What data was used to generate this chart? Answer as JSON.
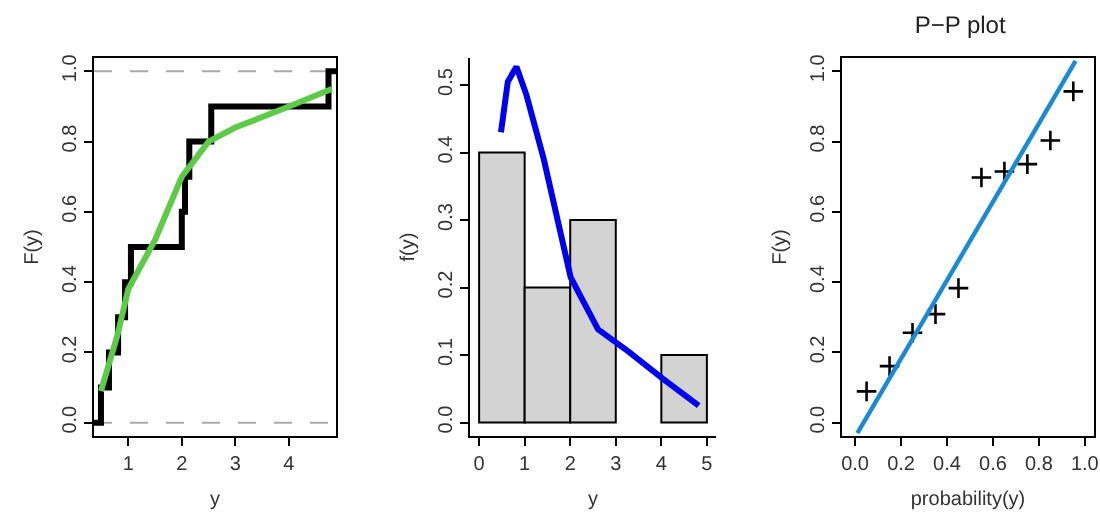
{
  "chart_data": [
    {
      "type": "step",
      "xlabel": "y",
      "ylabel": "F(y)",
      "xlim": [
        0.36,
        4.88
      ],
      "ylim": [
        -0.038,
        1.038
      ],
      "xticks": [
        1,
        2,
        3,
        4
      ],
      "yticks": [
        {
          "value": 0,
          "label": "0.0"
        },
        {
          "value": 0.2,
          "label": "0.2"
        },
        {
          "value": 0.4,
          "label": "0.4"
        },
        {
          "value": 0.6,
          "label": "0.6"
        },
        {
          "value": 0.8,
          "label": "0.8"
        },
        {
          "value": 1,
          "label": "1.0"
        }
      ],
      "grid": false,
      "ref_lines": [
        {
          "axis": "y",
          "value": 0,
          "color": "#aaaaaa",
          "line_style": "dashed"
        },
        {
          "axis": "y",
          "value": 1,
          "color": "#aaaaaa",
          "line_style": "dashed"
        }
      ],
      "series": [
        {
          "type": "step",
          "color": "#000000",
          "x": [
            0.36,
            0.49,
            0.64,
            0.81,
            0.94,
            1.05,
            2.0,
            2.06,
            2.14,
            2.55,
            4.74,
            4.88
          ],
          "values": [
            0,
            0.1,
            0.2,
            0.3,
            0.4,
            0.5,
            0.6,
            0.7,
            0.8,
            0.9,
            1.0,
            1.0
          ]
        },
        {
          "type": "line",
          "color": "#5ecb48",
          "x": [
            0.49,
            0.8,
            1.0,
            1.5,
            2.0,
            2.5,
            3.0,
            4.0,
            4.8
          ],
          "values": [
            0.09,
            0.25,
            0.38,
            0.52,
            0.7,
            0.8,
            0.84,
            0.9,
            0.95
          ]
        }
      ]
    },
    {
      "type": "histogram",
      "xlabel": "y",
      "ylabel": "f(y)",
      "xlim": [
        -0.2,
        5.2
      ],
      "ylim": [
        -0.02,
        0.54
      ],
      "xticks": [
        0,
        1,
        2,
        3,
        4,
        5
      ],
      "yticks": [
        {
          "value": 0,
          "label": "0.0"
        },
        0.1,
        0.2,
        0.3,
        0.4,
        0.5
      ],
      "grid": false,
      "bins": [
        0,
        1,
        2,
        3,
        4,
        5
      ],
      "values": [
        0.4,
        0.2,
        0.3,
        0,
        0.1
      ],
      "color": "#d3d3d3",
      "series": [
        {
          "type": "line",
          "color": "#0000ee",
          "x": [
            0.48,
            0.63,
            0.82,
            1.04,
            1.42,
            2.01,
            2.61,
            3.28,
            4.03,
            4.82
          ],
          "values": [
            0.43,
            0.505,
            0.527,
            0.485,
            0.39,
            0.215,
            0.138,
            0.105,
            0.065,
            0.025
          ]
        }
      ]
    },
    {
      "type": "scatter",
      "title": "P−P plot",
      "xlabel": "probability(y)",
      "ylabel": "F(y)",
      "xlim": [
        -0.057,
        1.04
      ],
      "ylim": [
        -0.038,
        1.038
      ],
      "xticks": [
        {
          "value": 0,
          "label": "0.0"
        },
        0.2,
        0.4,
        0.6,
        0.8,
        {
          "value": 1,
          "label": "1.0"
        }
      ],
      "yticks": [
        {
          "value": 0,
          "label": "0.0"
        },
        0.2,
        0.4,
        0.6,
        0.8,
        {
          "value": 1,
          "label": "1.0"
        }
      ],
      "grid": false,
      "series": [
        {
          "type": "scatter",
          "marker": "cross",
          "color": "#000000",
          "x": [
            0.05,
            0.15,
            0.25,
            0.35,
            0.45,
            0.55,
            0.65,
            0.75,
            0.85,
            0.95
          ],
          "values": [
            0.089,
            0.161,
            0.256,
            0.309,
            0.383,
            0.698,
            0.715,
            0.736,
            0.803,
            0.943
          ]
        },
        {
          "type": "line",
          "color": "#1a8ad4",
          "x": [
            0.01,
            0.96
          ],
          "values": [
            -0.03,
            1.03
          ]
        }
      ]
    }
  ]
}
